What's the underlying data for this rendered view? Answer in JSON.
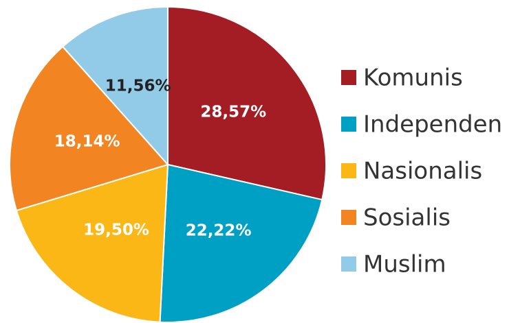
{
  "chart_data": {
    "type": "pie",
    "categories": [
      "Komunis",
      "Independen",
      "Nasionalis",
      "Sosialis",
      "Muslim"
    ],
    "values": [
      28.57,
      22.22,
      19.5,
      18.14,
      11.56
    ],
    "value_labels": [
      "28,57%",
      "22,22%",
      "19,50%",
      "18,14%",
      "11,56%"
    ],
    "colors": [
      "#a51d24",
      "#00a0c4",
      "#fbb715",
      "#f28522",
      "#92cbe8"
    ],
    "label_colors": [
      "#ffffff",
      "#ffffff",
      "#ffffff",
      "#ffffff",
      "#222222"
    ],
    "legend": "right"
  }
}
